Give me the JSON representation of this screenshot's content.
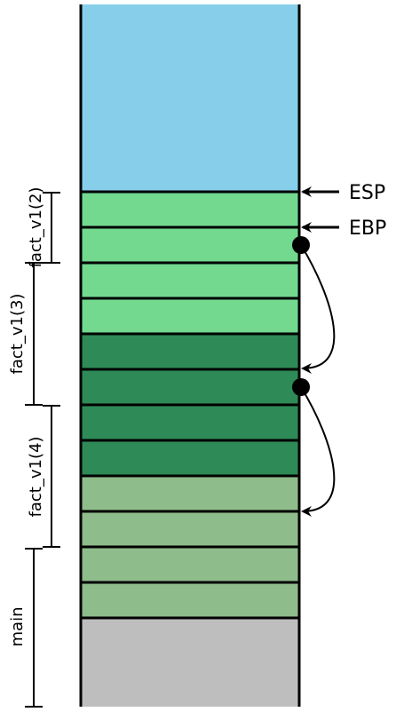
{
  "colors": {
    "free_space": "#87CEEB",
    "frame_light_green": "#72D98F",
    "frame_dark_green": "#2E8B57",
    "frame_sage_green": "#8FBC8B",
    "main_gray": "#BEBEBE",
    "line": "#000000"
  },
  "registers": [
    {
      "name": "ESP",
      "label": "ESP"
    },
    {
      "name": "EBP",
      "label": "EBP"
    }
  ],
  "frames": [
    {
      "name": "fact_v1(2)",
      "label": "fact_v1(2)"
    },
    {
      "name": "fact_v1(3)",
      "label": "fact_v1(3)"
    },
    {
      "name": "fact_v1(4)",
      "label": "fact_v1(4)"
    },
    {
      "name": "main",
      "label": "main"
    }
  ],
  "stack_cells": [
    {
      "frame": "fact_v1(2)",
      "color_key": "frame_light_green"
    },
    {
      "frame": "fact_v1(2)",
      "color_key": "frame_light_green"
    },
    {
      "frame": "fact_v1(3)",
      "color_key": "frame_light_green"
    },
    {
      "frame": "fact_v1(3)",
      "color_key": "frame_light_green"
    },
    {
      "frame": "fact_v1(3)",
      "color_key": "frame_dark_green"
    },
    {
      "frame": "fact_v1(3)",
      "color_key": "frame_dark_green"
    },
    {
      "frame": "fact_v1(4)",
      "color_key": "frame_dark_green"
    },
    {
      "frame": "fact_v1(4)",
      "color_key": "frame_dark_green"
    },
    {
      "frame": "fact_v1(4)",
      "color_key": "frame_sage_green"
    },
    {
      "frame": "fact_v1(4)",
      "color_key": "frame_sage_green"
    },
    {
      "frame": "main",
      "color_key": "frame_sage_green"
    },
    {
      "frame": "main",
      "color_key": "frame_sage_green"
    }
  ],
  "saved_ebp_links": [
    {
      "from_cell": 1,
      "to_cell": 5
    },
    {
      "from_cell": 5,
      "to_cell": 9
    }
  ]
}
